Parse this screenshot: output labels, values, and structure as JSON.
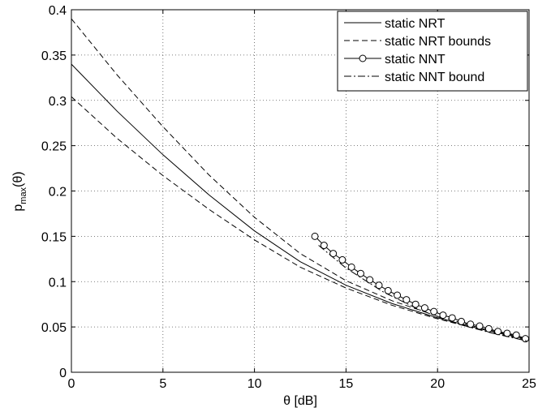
{
  "chart_data": {
    "type": "line",
    "xlabel": "θ [dB]",
    "ylabel": {
      "base": "p",
      "sub": "max",
      "arg": "(θ)"
    },
    "xlim": [
      0,
      25
    ],
    "ylim": [
      0,
      0.4
    ],
    "x_ticks": [
      0,
      5,
      10,
      15,
      20,
      25
    ],
    "x_tick_labels": [
      "0",
      "5",
      "10",
      "15",
      "20",
      "25"
    ],
    "y_ticks": [
      0,
      0.05,
      0.1,
      0.15,
      0.2,
      0.25,
      0.3,
      0.35,
      0.4
    ],
    "y_tick_labels": [
      "0",
      "0.05",
      "0.1",
      "0.15",
      "0.2",
      "0.25",
      "0.3",
      "0.35",
      "0.4"
    ],
    "grid": true,
    "legend_position": "top-right",
    "series": [
      {
        "name": "static NRT",
        "style": "solid",
        "marker": "none",
        "x": [
          0,
          2.5,
          5,
          7.5,
          10,
          12.5,
          15,
          17.5,
          20,
          22.5,
          25
        ],
        "y": [
          0.34,
          0.288,
          0.24,
          0.196,
          0.156,
          0.122,
          0.096,
          0.076,
          0.06,
          0.047,
          0.036
        ]
      },
      {
        "name": "static NRT bounds",
        "style": "dashed",
        "marker": "none",
        "x": [
          0,
          2.5,
          5,
          7.5,
          10,
          12.5,
          15,
          17.5,
          20,
          22.5,
          25
        ],
        "y": [
          0.39,
          0.328,
          0.271,
          0.218,
          0.171,
          0.131,
          0.101,
          0.079,
          0.062,
          0.048,
          0.037
        ]
      },
      {
        "name": "",
        "style": "dashed",
        "marker": "none",
        "x": [
          0,
          2.5,
          5,
          7.5,
          10,
          12.5,
          15,
          17.5,
          20,
          22.5,
          25
        ],
        "y": [
          0.304,
          0.258,
          0.217,
          0.18,
          0.146,
          0.116,
          0.093,
          0.074,
          0.059,
          0.046,
          0.035
        ]
      },
      {
        "name": "static NNT",
        "style": "solid",
        "marker": "circle",
        "x": [
          13.3,
          13.8,
          14.3,
          14.8,
          15.3,
          15.8,
          16.3,
          16.8,
          17.3,
          17.8,
          18.3,
          18.8,
          19.3,
          19.8,
          20.3,
          20.8,
          21.3,
          21.8,
          22.3,
          22.8,
          23.3,
          23.8,
          24.3,
          24.8
        ],
        "y": [
          0.15,
          0.14,
          0.131,
          0.124,
          0.116,
          0.109,
          0.102,
          0.096,
          0.09,
          0.085,
          0.08,
          0.075,
          0.071,
          0.067,
          0.063,
          0.06,
          0.056,
          0.053,
          0.051,
          0.048,
          0.045,
          0.043,
          0.041,
          0.037
        ]
      },
      {
        "name": "static NNT bound",
        "style": "dashdot",
        "marker": "none",
        "x": [
          13.5,
          15,
          17,
          19,
          21,
          23,
          25
        ],
        "y": [
          0.14,
          0.115,
          0.089,
          0.069,
          0.054,
          0.043,
          0.034
        ]
      }
    ]
  }
}
